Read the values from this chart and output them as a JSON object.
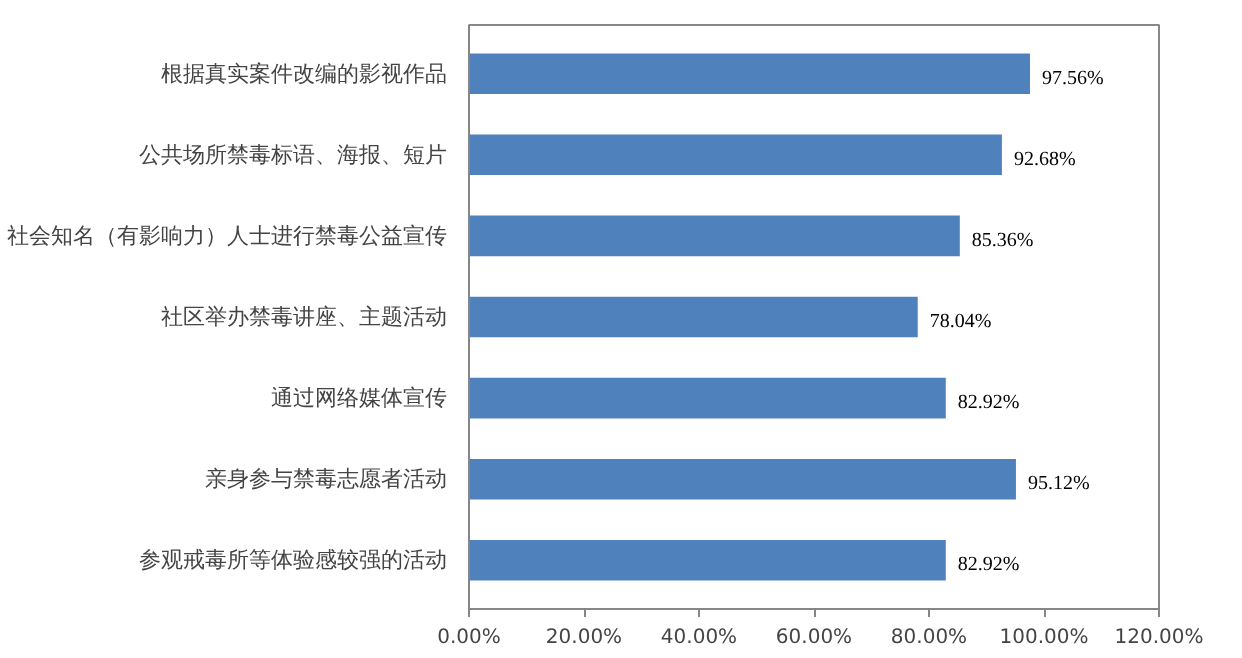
{
  "chart_data": {
    "type": "bar",
    "orientation": "horizontal",
    "categories": [
      "根据真实案件改编的影视作品",
      "公共场所禁毒标语、海报、短片",
      "社会知名（有影响力）人士进行禁毒公益宣传",
      "社区举办禁毒讲座、主题活动",
      "通过网络媒体宣传",
      "亲身参与禁毒志愿者活动",
      "参观戒毒所等体验感较强的活动"
    ],
    "values": [
      97.56,
      92.68,
      85.36,
      78.04,
      82.92,
      95.12,
      82.92
    ],
    "value_labels": [
      "97.56%",
      "92.68%",
      "85.36%",
      "78.04%",
      "82.92%",
      "95.12%",
      "82.92%"
    ],
    "color": "#4f81bd",
    "xlim": [
      0,
      120
    ],
    "xticks": [
      {
        "value": 0,
        "label": "0.00%"
      },
      {
        "value": 20,
        "label": "20.00%"
      },
      {
        "value": 40,
        "label": "40.00%"
      },
      {
        "value": 60,
        "label": "60.00%"
      },
      {
        "value": 80,
        "label": "80.00%"
      },
      {
        "value": 100,
        "label": "100.00%"
      },
      {
        "value": 120,
        "label": "120.00%"
      }
    ],
    "grid": false
  }
}
